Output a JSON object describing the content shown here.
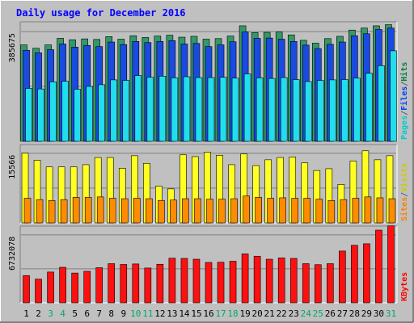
{
  "chart_data": {
    "type": "bar",
    "title": "Daily usage for December 2016",
    "days": [
      "1",
      "2",
      "3",
      "4",
      "5",
      "6",
      "7",
      "8",
      "9",
      "10",
      "11",
      "12",
      "13",
      "14",
      "15",
      "16",
      "17",
      "18",
      "19",
      "20",
      "21",
      "22",
      "23",
      "24",
      "25",
      "26",
      "27",
      "28",
      "29",
      "30",
      "31"
    ],
    "weekend_days": [
      "3",
      "4",
      "10",
      "11",
      "17",
      "18",
      "24",
      "25",
      "31"
    ],
    "panels": [
      {
        "id": "pages-files-hits",
        "axis_label": "385675",
        "axis_value": 385675,
        "ylim": [
          0,
          420000
        ],
        "legend": [
          "Pages",
          "/",
          "Files",
          "/",
          "Hits"
        ],
        "legend_colors": [
          "#00cccc",
          "#606060",
          "#0040ff",
          "#606060",
          "#008040"
        ],
        "series": [
          {
            "name": "Hits",
            "color": "#339966",
            "values": [
              339000,
              327000,
              339000,
              362000,
              357000,
              360000,
              358000,
              368000,
              359000,
              371000,
              365000,
              370000,
              373000,
              366000,
              369000,
              359000,
              361000,
              370000,
              406000,
              382000,
              383000,
              384000,
              374000,
              355000,
              345000,
              361000,
              369000,
              391000,
              398000,
              406000,
              410000
            ]
          },
          {
            "name": "Files",
            "color": "#1a4be0",
            "values": [
              320000,
              311000,
              322000,
              342000,
              331000,
              337000,
              333000,
              349000,
              340000,
              351000,
              347000,
              351000,
              354000,
              342000,
              344000,
              333000,
              339000,
              350000,
              384000,
              362000,
              363000,
              359000,
              351000,
              338000,
              326000,
              341000,
              349000,
              371000,
              378000,
              393000,
              398000
            ]
          },
          {
            "name": "Pages",
            "color": "#22ddee",
            "values": [
              186000,
              184000,
              209000,
              211000,
              183000,
              193000,
              199000,
              216000,
              214000,
              231000,
              225000,
              229000,
              223000,
              227000,
              224000,
              224000,
              225000,
              222000,
              237000,
              223000,
              221000,
              224000,
              217000,
              210000,
              214000,
              216000,
              217000,
              222000,
              239000,
              266000,
              318000
            ]
          }
        ]
      },
      {
        "id": "sites-visits",
        "axis_label": "15566",
        "axis_value": 15566,
        "ylim": [
          0,
          17500
        ],
        "legend": [
          "Sites",
          "/",
          "Visits"
        ],
        "legend_colors": [
          "#ff8000",
          "#606060",
          "#cccc00"
        ],
        "series": [
          {
            "name": "Visits",
            "color": "#ffff22",
            "values": [
              15566,
              14000,
              12500,
              12500,
              12500,
              13000,
              14600,
              14600,
              12200,
              15000,
              13300,
              8200,
              7600,
              15200,
              14800,
              15800,
              15100,
              13000,
              15400,
              12800,
              14100,
              14600,
              14700,
              13400,
              11700,
              12100,
              8600,
              13800,
              16100,
              14100,
              15000
            ]
          },
          {
            "name": "Sites",
            "color": "#ff8c00",
            "values": [
              5500,
              5200,
              5000,
              5200,
              5700,
              5700,
              5800,
              5500,
              5400,
              5500,
              5400,
              5000,
              5100,
              5400,
              5400,
              5300,
              5300,
              5400,
              6000,
              5700,
              5500,
              5600,
              5500,
              5500,
              5300,
              5000,
              5200,
              5500,
              5800,
              5600,
              5400
            ]
          }
        ]
      },
      {
        "id": "kbytes",
        "axis_label": "6732078",
        "axis_value": 6732078,
        "ylim": [
          0,
          7600000
        ],
        "legend": [
          "KBytes"
        ],
        "legend_colors": [
          "#ff0000"
        ],
        "series": [
          {
            "name": "KBytes",
            "color": "#ff1010",
            "values": [
              2700000,
              2350000,
              3050000,
              3520000,
              2950000,
              3120000,
              3480000,
              3880000,
              3800000,
              3850000,
              3450000,
              3820000,
              4420000,
              4400000,
              4320000,
              4000000,
              4020000,
              4120000,
              4850000,
              4620000,
              4320000,
              4450000,
              4400000,
              3880000,
              3780000,
              3880000,
              5130000,
              5700000,
              5850000,
              7200000,
              7630000
            ]
          }
        ]
      }
    ],
    "colors": {
      "background": "#c0c0c0",
      "title": "#0000ff",
      "weekday_label": "#000000",
      "weekend_label": "#00aa66",
      "gridline": "#808080"
    }
  }
}
